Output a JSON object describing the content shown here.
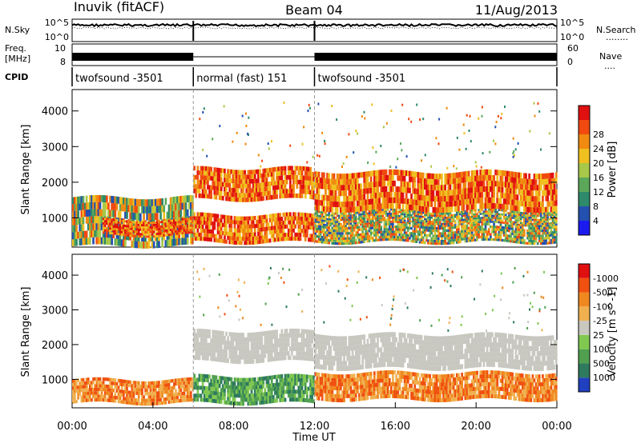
{
  "header": {
    "station": "Inuvik (fitACF)",
    "beam": "Beam 04",
    "date": "11/Aug/2013"
  },
  "left_labels": {
    "nsky": "N.Sky",
    "freq_a": "Freq.",
    "freq_b": "[MHz]",
    "cpid": "CPID"
  },
  "right_labels": {
    "nsearch": "N.Search",
    "nsearch_dots": "........",
    "nave": "Nave",
    "nave_dots": "...."
  },
  "noise_axis": {
    "top": "10^5",
    "bottom": "10^0"
  },
  "freq_axis": {
    "top": "10",
    "bottom": "8"
  },
  "nave_axis": {
    "top": "60",
    "bottom": "0"
  },
  "cpid_blocks": [
    {
      "label": "twofsound -3501",
      "start_h": 0,
      "end_h": 6
    },
    {
      "label": "normal (fast) 151",
      "start_h": 6,
      "end_h": 12
    },
    {
      "label": "twofsound -3501",
      "start_h": 12,
      "end_h": 24
    }
  ],
  "power_colorbar": {
    "title": "Power [dB]",
    "ticks": [
      "4",
      "8",
      "12",
      "16",
      "20",
      "24",
      "28"
    ],
    "colors": [
      "#1b1bf0",
      "#2450b0",
      "#2e8a6a",
      "#5ca85a",
      "#a8c84a",
      "#f0c020",
      "#f08a10",
      "#f04a10",
      "#e01010"
    ]
  },
  "velocity_colorbar": {
    "title": "Velocity [m s^-1]",
    "ticks": [
      "1000",
      "500",
      "100",
      "25",
      "-25",
      "-100",
      "-500",
      "-1000"
    ],
    "colors": [
      "#2040c0",
      "#2e7a5e",
      "#50a050",
      "#80c850",
      "#c8c8c0",
      "#f0b050",
      "#f08820",
      "#f05010",
      "#e01010"
    ]
  },
  "chart_data": [
    {
      "type": "heatmap",
      "panel": "power",
      "ylabel": "Slant Range [km]",
      "xlim": [
        0,
        24
      ],
      "ylim": [
        180,
        4600
      ],
      "yticks": [
        1000,
        2000,
        3000,
        4000
      ],
      "bands": [
        {
          "start_h": 0,
          "end_h": 6,
          "range": [
            200,
            1580
          ],
          "level": "mixed"
        },
        {
          "start_h": 1.5,
          "end_h": 6,
          "range": [
            500,
            950
          ],
          "level": "high"
        },
        {
          "start_h": 6,
          "end_h": 12,
          "range": [
            1500,
            2400
          ],
          "level": "high"
        },
        {
          "start_h": 6,
          "end_h": 12,
          "range": [
            300,
            1100
          ],
          "level": "high"
        },
        {
          "start_h": 12,
          "end_h": 24,
          "range": [
            1200,
            2300
          ],
          "level": "high"
        },
        {
          "start_h": 12,
          "end_h": 24,
          "range": [
            800,
            1200
          ],
          "level": "mixed"
        },
        {
          "start_h": 12,
          "end_h": 24,
          "range": [
            300,
            800
          ],
          "level": "mixed"
        }
      ]
    },
    {
      "type": "heatmap",
      "panel": "velocity",
      "ylabel": "Slant Range [km]",
      "xlabel": "Time UT",
      "xlim": [
        0,
        24
      ],
      "ylim": [
        180,
        4600
      ],
      "yticks": [
        1000,
        2000,
        3000,
        4000
      ],
      "xticks": [
        "00:00",
        "04:00",
        "08:00",
        "12:00",
        "16:00",
        "20:00",
        "00:00"
      ],
      "bands": [
        {
          "start_h": 0,
          "end_h": 6,
          "range": [
            300,
            1000
          ],
          "level": "negative"
        },
        {
          "start_h": 6,
          "end_h": 12,
          "range": [
            1500,
            2400
          ],
          "level": "near-zero"
        },
        {
          "start_h": 6,
          "end_h": 12,
          "range": [
            300,
            1100
          ],
          "level": "positive"
        },
        {
          "start_h": 12,
          "end_h": 24,
          "range": [
            1300,
            2300
          ],
          "level": "near-zero"
        },
        {
          "start_h": 12,
          "end_h": 24,
          "range": [
            400,
            1200
          ],
          "level": "negative"
        }
      ]
    }
  ]
}
